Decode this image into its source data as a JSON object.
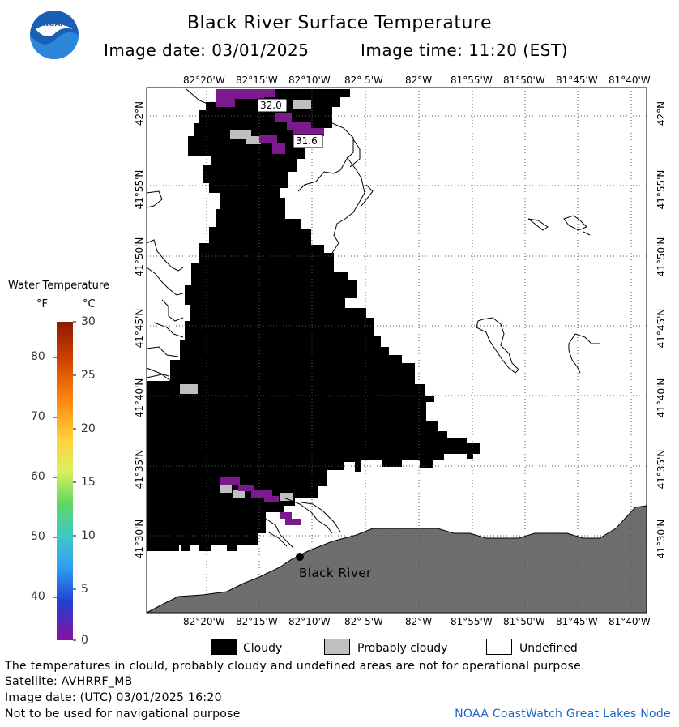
{
  "title": "Black River Surface Temperature",
  "image_date_label": "Image date: 03/01/2025",
  "image_time_label": "Image time: 11:20 (EST)",
  "logo_text": "NOAA",
  "lon_labels": [
    "82°20'W",
    "82°15'W",
    "82°10'W",
    "82° 5'W",
    "82°W",
    "81°55'W",
    "81°50'W",
    "81°45'W",
    "81°40'W"
  ],
  "lat_labels": [
    "42°N",
    "41°55'N",
    "41°50'N",
    "41°45'N",
    "41°40'N",
    "41°35'N",
    "41°30'N"
  ],
  "temp_readings": [
    "32.0",
    "31.6"
  ],
  "place_label": "Black River",
  "legend": {
    "title": "Water Temperature",
    "unit_f": "°F",
    "unit_c": "°C",
    "f_labels": [
      "80",
      "70",
      "60",
      "50",
      "40"
    ],
    "c_labels": [
      "30",
      "25",
      "20",
      "15",
      "10",
      "5",
      "0"
    ]
  },
  "key": {
    "cloudy": "Cloudy",
    "probably_cloudy": "Probably cloudy",
    "undefined": "Undefined"
  },
  "footer": {
    "line1": "The temperatures in clould, probably cloudy and undefined areas are not for operational purpose.",
    "line2": "Satellite: AVHRRF_MB",
    "line3": "Image date: (UTC) 03/01/2025  16:20",
    "line4": "Not to be used for navigational purpose",
    "credit": "NOAA CoastWatch Great Lakes Node"
  },
  "colors": {
    "cloudy": "#000000",
    "probably_cloudy": "#bfbfbf",
    "undefined": "#ffffff",
    "land": "#6e6e6e",
    "cold_water": "#7a1a8c",
    "credit": "#1e64c8"
  }
}
